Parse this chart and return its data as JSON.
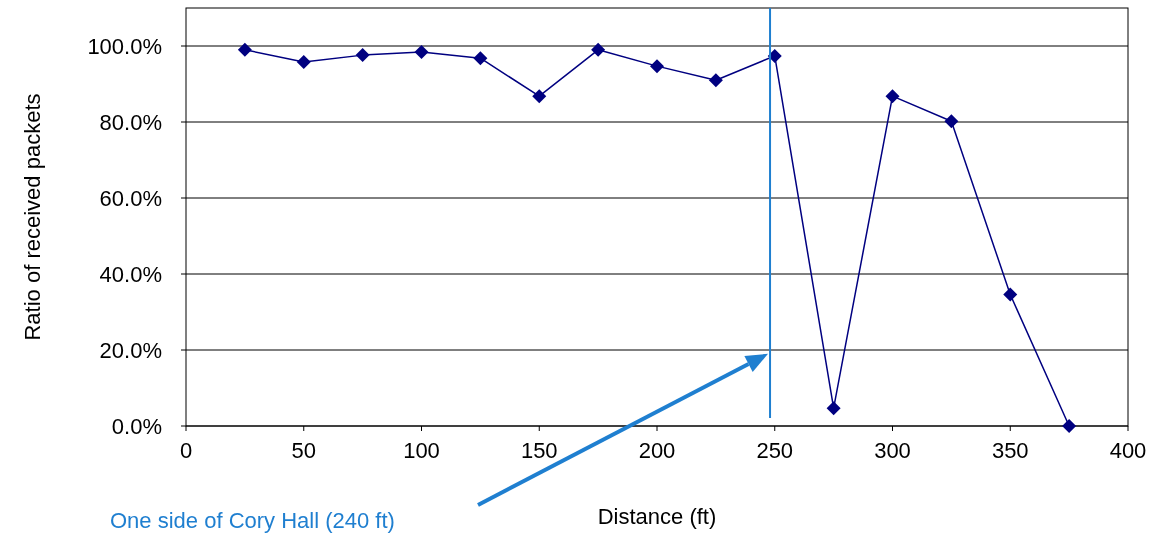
{
  "chart_data": {
    "type": "line",
    "xlabel": "Distance (ft)",
    "ylabel": "Ratio of received packets",
    "x": [
      25,
      50,
      75,
      100,
      125,
      150,
      175,
      200,
      225,
      250,
      275,
      300,
      325,
      350,
      375
    ],
    "series": [
      {
        "color": "#000080",
        "values": [
          99,
          95.8,
          97.6,
          98.4,
          96.8,
          86.8,
          99,
          94.7,
          91,
          97.4,
          4.7,
          86.8,
          80.2,
          34.6,
          0
        ]
      }
    ],
    "xlim": [
      0,
      400
    ],
    "xticks": [
      0,
      50,
      100,
      150,
      200,
      250,
      300,
      350,
      400
    ],
    "ylim": [
      0,
      110
    ],
    "yticks": [
      {
        "value": 0,
        "label": "0.0%"
      },
      {
        "value": 20,
        "label": "20.0%"
      },
      {
        "value": 40,
        "label": "40.0%"
      },
      {
        "value": 60,
        "label": "60.0%"
      },
      {
        "value": 80,
        "label": "80.0%"
      },
      {
        "value": 100,
        "label": "100.0%"
      }
    ],
    "grid": "y",
    "marker": "diamond",
    "line_style": "solid",
    "ref_lines": [
      {
        "axis": "x",
        "value": 248,
        "label": "One side of Cory Hall (240 ft)",
        "color": "#1f7fd0"
      }
    ]
  }
}
